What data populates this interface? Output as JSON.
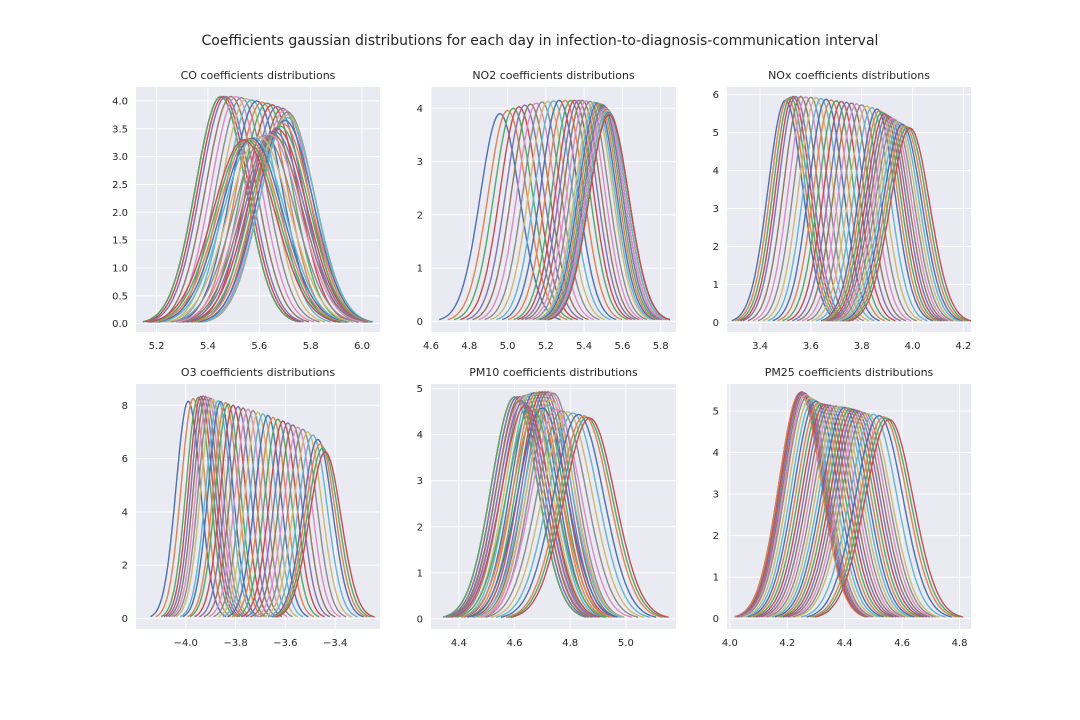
{
  "figure": {
    "title": "Coefficients gaussian distributions for each day in infection-to-diagnosis-communication interval"
  },
  "colors": {
    "plot_background": "#eaeaf2",
    "grid": "#ffffff",
    "palette": [
      "#4c72b0",
      "#dd8452",
      "#55a868",
      "#c44e52",
      "#8172b3",
      "#937860",
      "#da8bc3",
      "#8c8c8c",
      "#ccb974",
      "#64b5cd"
    ]
  },
  "chart_data": [
    {
      "type": "line",
      "title": "CO coefficients distributions",
      "xlabel": "",
      "ylabel": "",
      "xlim": [
        5.12,
        6.07
      ],
      "ylim": [
        -0.15,
        4.25
      ],
      "xticks": [
        5.2,
        5.4,
        5.6,
        5.8,
        6.0
      ],
      "xtick_labels": [
        "5.2",
        "5.4",
        "5.6",
        "5.8",
        "6.0"
      ],
      "yticks": [
        0.0,
        0.5,
        1.0,
        1.5,
        2.0,
        2.5,
        3.0,
        3.5,
        4.0
      ],
      "ytick_labels": [
        "0.0",
        "0.5",
        "1.0",
        "1.5",
        "2.0",
        "2.5",
        "3.0",
        "3.5",
        "4.0"
      ],
      "grid": true,
      "n_series": 34,
      "gaussians": [
        {
          "mean": 5.45,
          "peak": 4.08
        },
        {
          "mean": 5.45,
          "peak": 4.08
        },
        {
          "mean": 5.45,
          "peak": 4.08
        },
        {
          "mean": 5.46,
          "peak": 4.08
        },
        {
          "mean": 5.47,
          "peak": 4.08
        },
        {
          "mean": 5.49,
          "peak": 4.08
        },
        {
          "mean": 5.51,
          "peak": 4.08
        },
        {
          "mean": 5.53,
          "peak": 4.06
        },
        {
          "mean": 5.55,
          "peak": 4.04
        },
        {
          "mean": 5.57,
          "peak": 4.02
        },
        {
          "mean": 5.59,
          "peak": 4.0
        },
        {
          "mean": 5.61,
          "peak": 3.98
        },
        {
          "mean": 5.63,
          "peak": 3.96
        },
        {
          "mean": 5.65,
          "peak": 3.93
        },
        {
          "mean": 5.67,
          "peak": 3.9
        },
        {
          "mean": 5.69,
          "peak": 3.87
        },
        {
          "mean": 5.7,
          "peak": 3.84
        },
        {
          "mean": 5.71,
          "peak": 3.8
        },
        {
          "mean": 5.71,
          "peak": 3.75
        },
        {
          "mean": 5.71,
          "peak": 3.7
        },
        {
          "mean": 5.7,
          "peak": 3.65
        },
        {
          "mean": 5.69,
          "peak": 3.6
        },
        {
          "mean": 5.68,
          "peak": 3.55
        },
        {
          "mean": 5.67,
          "peak": 3.5
        },
        {
          "mean": 5.66,
          "peak": 3.45
        },
        {
          "mean": 5.65,
          "peak": 3.42
        },
        {
          "mean": 5.64,
          "peak": 3.4
        },
        {
          "mean": 5.62,
          "peak": 3.38
        },
        {
          "mean": 5.6,
          "peak": 3.36
        },
        {
          "mean": 5.58,
          "peak": 3.34
        },
        {
          "mean": 5.57,
          "peak": 3.33
        },
        {
          "mean": 5.56,
          "peak": 3.32
        },
        {
          "mean": 5.55,
          "peak": 3.31
        },
        {
          "mean": 5.54,
          "peak": 3.3
        }
      ],
      "support_halfwidth_sd": 3.1
    },
    {
      "type": "line",
      "title": "NO2 coefficients distributions",
      "xlabel": "",
      "ylabel": "",
      "xlim": [
        4.6,
        5.88
      ],
      "ylim": [
        -0.2,
        4.4
      ],
      "xticks": [
        4.6,
        4.8,
        5.0,
        5.2,
        5.4,
        5.6,
        5.8
      ],
      "xtick_labels": [
        "4.6",
        "4.8",
        "5.0",
        "5.2",
        "5.4",
        "5.6",
        "5.8"
      ],
      "yticks": [
        0,
        1,
        2,
        3,
        4
      ],
      "ytick_labels": [
        "0",
        "1",
        "2",
        "3",
        "4"
      ],
      "grid": true,
      "n_series": 34,
      "gaussians": [
        {
          "mean": 4.96,
          "peak": 3.9
        },
        {
          "mean": 5.0,
          "peak": 3.96
        },
        {
          "mean": 5.03,
          "peak": 4.0
        },
        {
          "mean": 5.06,
          "peak": 4.03
        },
        {
          "mean": 5.09,
          "peak": 4.06
        },
        {
          "mean": 5.12,
          "peak": 4.08
        },
        {
          "mean": 5.15,
          "peak": 4.1
        },
        {
          "mean": 5.18,
          "peak": 4.12
        },
        {
          "mean": 5.21,
          "peak": 4.13
        },
        {
          "mean": 5.24,
          "peak": 4.14
        },
        {
          "mean": 5.27,
          "peak": 4.15
        },
        {
          "mean": 5.3,
          "peak": 4.15
        },
        {
          "mean": 5.33,
          "peak": 4.15
        },
        {
          "mean": 5.35,
          "peak": 4.15
        },
        {
          "mean": 5.37,
          "peak": 4.15
        },
        {
          "mean": 5.39,
          "peak": 4.15
        },
        {
          "mean": 5.41,
          "peak": 4.14
        },
        {
          "mean": 5.43,
          "peak": 4.13
        },
        {
          "mean": 5.45,
          "peak": 4.12
        },
        {
          "mean": 5.46,
          "peak": 4.11
        },
        {
          "mean": 5.47,
          "peak": 4.1
        },
        {
          "mean": 5.48,
          "peak": 4.09
        },
        {
          "mean": 5.49,
          "peak": 4.08
        },
        {
          "mean": 5.5,
          "peak": 4.06
        },
        {
          "mean": 5.5,
          "peak": 4.04
        },
        {
          "mean": 5.51,
          "peak": 4.02
        },
        {
          "mean": 5.51,
          "peak": 4.0
        },
        {
          "mean": 5.52,
          "peak": 3.98
        },
        {
          "mean": 5.52,
          "peak": 3.96
        },
        {
          "mean": 5.52,
          "peak": 3.94
        },
        {
          "mean": 5.53,
          "peak": 3.92
        },
        {
          "mean": 5.53,
          "peak": 3.9
        },
        {
          "mean": 5.53,
          "peak": 3.89
        },
        {
          "mean": 5.53,
          "peak": 3.88
        }
      ],
      "support_halfwidth_sd": 3.1
    },
    {
      "type": "line",
      "title": "NOx coefficients distributions",
      "xlabel": "",
      "ylabel": "",
      "xlim": [
        3.27,
        4.23
      ],
      "ylim": [
        -0.25,
        6.2
      ],
      "xticks": [
        3.4,
        3.6,
        3.8,
        4.0,
        4.2
      ],
      "xtick_labels": [
        "3.4",
        "3.6",
        "3.8",
        "4.0",
        "4.2"
      ],
      "yticks": [
        0,
        1,
        2,
        3,
        4,
        5,
        6
      ],
      "ytick_labels": [
        "0",
        "1",
        "2",
        "3",
        "4",
        "5",
        "6"
      ],
      "grid": true,
      "n_series": 34,
      "gaussians": [
        {
          "mean": 3.5,
          "peak": 5.85
        },
        {
          "mean": 3.51,
          "peak": 5.9
        },
        {
          "mean": 3.52,
          "peak": 5.93
        },
        {
          "mean": 3.53,
          "peak": 5.95
        },
        {
          "mean": 3.54,
          "peak": 5.95
        },
        {
          "mean": 3.56,
          "peak": 5.95
        },
        {
          "mean": 3.58,
          "peak": 5.94
        },
        {
          "mean": 3.6,
          "peak": 5.93
        },
        {
          "mean": 3.62,
          "peak": 5.92
        },
        {
          "mean": 3.64,
          "peak": 5.9
        },
        {
          "mean": 3.66,
          "peak": 5.88
        },
        {
          "mean": 3.68,
          "peak": 5.86
        },
        {
          "mean": 3.7,
          "peak": 5.84
        },
        {
          "mean": 3.72,
          "peak": 5.82
        },
        {
          "mean": 3.74,
          "peak": 5.8
        },
        {
          "mean": 3.76,
          "peak": 5.78
        },
        {
          "mean": 3.78,
          "peak": 5.76
        },
        {
          "mean": 3.8,
          "peak": 5.73
        },
        {
          "mean": 3.82,
          "peak": 5.7
        },
        {
          "mean": 3.84,
          "peak": 5.66
        },
        {
          "mean": 3.86,
          "peak": 5.62
        },
        {
          "mean": 3.87,
          "peak": 5.58
        },
        {
          "mean": 3.88,
          "peak": 5.54
        },
        {
          "mean": 3.89,
          "peak": 5.5
        },
        {
          "mean": 3.9,
          "peak": 5.46
        },
        {
          "mean": 3.91,
          "peak": 5.42
        },
        {
          "mean": 3.92,
          "peak": 5.38
        },
        {
          "mean": 3.93,
          "peak": 5.34
        },
        {
          "mean": 3.94,
          "peak": 5.3
        },
        {
          "mean": 3.95,
          "peak": 5.26
        },
        {
          "mean": 3.96,
          "peak": 5.22
        },
        {
          "mean": 3.97,
          "peak": 5.18
        },
        {
          "mean": 3.98,
          "peak": 5.15
        },
        {
          "mean": 3.99,
          "peak": 5.12
        }
      ],
      "support_halfwidth_sd": 3.1
    },
    {
      "type": "line",
      "title": "O3 coefficients distributions",
      "xlabel": "",
      "ylabel": "",
      "xlim": [
        -4.2,
        -3.22
      ],
      "ylim": [
        -0.4,
        8.8
      ],
      "xticks": [
        -4.0,
        -3.8,
        -3.6,
        -3.4
      ],
      "xtick_labels": [
        "−4.0",
        "−3.8",
        "−3.6",
        "−3.4"
      ],
      "yticks": [
        0,
        2,
        4,
        6,
        8
      ],
      "ytick_labels": [
        "0",
        "2",
        "4",
        "6",
        "8"
      ],
      "grid": true,
      "n_series": 34,
      "gaussians": [
        {
          "mean": -3.99,
          "peak": 8.15
        },
        {
          "mean": -3.97,
          "peak": 8.25
        },
        {
          "mean": -3.95,
          "peak": 8.3
        },
        {
          "mean": -3.94,
          "peak": 8.33
        },
        {
          "mean": -3.93,
          "peak": 8.35
        },
        {
          "mean": -3.92,
          "peak": 8.33
        },
        {
          "mean": -3.91,
          "peak": 8.3
        },
        {
          "mean": -3.9,
          "peak": 8.26
        },
        {
          "mean": -3.89,
          "peak": 8.22
        },
        {
          "mean": -3.87,
          "peak": 8.18
        },
        {
          "mean": -3.86,
          "peak": 8.14
        },
        {
          "mean": -3.84,
          "peak": 8.1
        },
        {
          "mean": -3.83,
          "peak": 8.05
        },
        {
          "mean": -3.81,
          "peak": 8.0
        },
        {
          "mean": -3.79,
          "peak": 7.95
        },
        {
          "mean": -3.77,
          "peak": 7.9
        },
        {
          "mean": -3.75,
          "peak": 7.85
        },
        {
          "mean": -3.73,
          "peak": 7.8
        },
        {
          "mean": -3.71,
          "peak": 7.74
        },
        {
          "mean": -3.69,
          "peak": 7.68
        },
        {
          "mean": -3.67,
          "peak": 7.62
        },
        {
          "mean": -3.65,
          "peak": 7.55
        },
        {
          "mean": -3.63,
          "peak": 7.48
        },
        {
          "mean": -3.61,
          "peak": 7.41
        },
        {
          "mean": -3.59,
          "peak": 7.34
        },
        {
          "mean": -3.57,
          "peak": 7.26
        },
        {
          "mean": -3.55,
          "peak": 7.18
        },
        {
          "mean": -3.53,
          "peak": 7.1
        },
        {
          "mean": -3.51,
          "peak": 7.0
        },
        {
          "mean": -3.49,
          "peak": 6.88
        },
        {
          "mean": -3.47,
          "peak": 6.72
        },
        {
          "mean": -3.46,
          "peak": 6.55
        },
        {
          "mean": -3.45,
          "peak": 6.4
        },
        {
          "mean": -3.44,
          "peak": 6.25
        }
      ],
      "support_halfwidth_sd": 3.1
    },
    {
      "type": "line",
      "title": "PM10 coefficients distributions",
      "xlabel": "",
      "ylabel": "",
      "xlim": [
        4.3,
        5.18
      ],
      "ylim": [
        -0.22,
        5.1
      ],
      "xticks": [
        4.4,
        4.6,
        4.8,
        5.0
      ],
      "xtick_labels": [
        "4.4",
        "4.6",
        "4.8",
        "5.0"
      ],
      "yticks": [
        0,
        1,
        2,
        3,
        4,
        5
      ],
      "ytick_labels": [
        "0",
        "1",
        "2",
        "3",
        "4",
        "5"
      ],
      "grid": true,
      "n_series": 34,
      "gaussians": [
        {
          "mean": 4.6,
          "peak": 4.82
        },
        {
          "mean": 4.6,
          "peak": 4.82
        },
        {
          "mean": 4.6,
          "peak": 4.82
        },
        {
          "mean": 4.61,
          "peak": 4.82
        },
        {
          "mean": 4.61,
          "peak": 4.82
        },
        {
          "mean": 4.62,
          "peak": 4.83
        },
        {
          "mean": 4.63,
          "peak": 4.84
        },
        {
          "mean": 4.64,
          "peak": 4.86
        },
        {
          "mean": 4.65,
          "peak": 4.88
        },
        {
          "mean": 4.66,
          "peak": 4.9
        },
        {
          "mean": 4.67,
          "peak": 4.91
        },
        {
          "mean": 4.68,
          "peak": 4.92
        },
        {
          "mean": 4.69,
          "peak": 4.93
        },
        {
          "mean": 4.7,
          "peak": 4.93
        },
        {
          "mean": 4.71,
          "peak": 4.93
        },
        {
          "mean": 4.72,
          "peak": 4.93
        },
        {
          "mean": 4.73,
          "peak": 4.92
        },
        {
          "mean": 4.74,
          "peak": 4.9
        },
        {
          "mean": 4.73,
          "peak": 4.75
        },
        {
          "mean": 4.72,
          "peak": 4.65
        },
        {
          "mean": 4.7,
          "peak": 4.58
        },
        {
          "mean": 4.68,
          "peak": 4.55
        },
        {
          "mean": 4.66,
          "peak": 4.6
        },
        {
          "mean": 4.64,
          "peak": 4.65
        },
        {
          "mean": 4.63,
          "peak": 4.7
        },
        {
          "mean": 4.62,
          "peak": 4.75
        },
        {
          "mean": 4.75,
          "peak": 4.55
        },
        {
          "mean": 4.77,
          "peak": 4.52
        },
        {
          "mean": 4.79,
          "peak": 4.5
        },
        {
          "mean": 4.81,
          "peak": 4.47
        },
        {
          "mean": 4.83,
          "peak": 4.44
        },
        {
          "mean": 4.85,
          "peak": 4.41
        },
        {
          "mean": 4.86,
          "peak": 4.38
        },
        {
          "mean": 4.87,
          "peak": 4.36
        }
      ],
      "support_halfwidth_sd": 3.1
    },
    {
      "type": "line",
      "title": "PM25 coefficients distributions",
      "xlabel": "",
      "ylabel": "",
      "xlim": [
        3.99,
        4.84
      ],
      "ylim": [
        -0.25,
        5.65
      ],
      "xticks": [
        4.0,
        4.2,
        4.4,
        4.6,
        4.8
      ],
      "xtick_labels": [
        "4.0",
        "4.2",
        "4.4",
        "4.6",
        "4.8"
      ],
      "yticks": [
        0,
        1,
        2,
        3,
        4,
        5
      ],
      "ytick_labels": [
        "0",
        "1",
        "2",
        "3",
        "4",
        "5"
      ],
      "grid": true,
      "n_series": 34,
      "gaussians": [
        {
          "mean": 4.245,
          "peak": 5.42
        },
        {
          "mean": 4.245,
          "peak": 5.44
        },
        {
          "mean": 4.25,
          "peak": 5.46
        },
        {
          "mean": 4.25,
          "peak": 5.46
        },
        {
          "mean": 4.255,
          "peak": 5.45
        },
        {
          "mean": 4.26,
          "peak": 5.43
        },
        {
          "mean": 4.265,
          "peak": 5.4
        },
        {
          "mean": 4.27,
          "peak": 5.36
        },
        {
          "mean": 4.28,
          "peak": 5.32
        },
        {
          "mean": 4.29,
          "peak": 5.28
        },
        {
          "mean": 4.3,
          "peak": 5.24
        },
        {
          "mean": 4.31,
          "peak": 5.2
        },
        {
          "mean": 4.32,
          "peak": 5.18
        },
        {
          "mean": 4.33,
          "peak": 5.16
        },
        {
          "mean": 4.34,
          "peak": 5.15
        },
        {
          "mean": 4.35,
          "peak": 5.14
        },
        {
          "mean": 4.36,
          "peak": 5.13
        },
        {
          "mean": 4.37,
          "peak": 5.12
        },
        {
          "mean": 4.38,
          "peak": 5.11
        },
        {
          "mean": 4.39,
          "peak": 5.1
        },
        {
          "mean": 4.4,
          "peak": 5.09
        },
        {
          "mean": 4.41,
          "peak": 5.08
        },
        {
          "mean": 4.42,
          "peak": 5.06
        },
        {
          "mean": 4.43,
          "peak": 5.04
        },
        {
          "mean": 4.44,
          "peak": 5.02
        },
        {
          "mean": 4.45,
          "peak": 5.0
        },
        {
          "mean": 4.46,
          "peak": 4.98
        },
        {
          "mean": 4.47,
          "peak": 4.96
        },
        {
          "mean": 4.48,
          "peak": 4.94
        },
        {
          "mean": 4.5,
          "peak": 4.92
        },
        {
          "mean": 4.52,
          "peak": 4.89
        },
        {
          "mean": 4.535,
          "peak": 4.86
        },
        {
          "mean": 4.545,
          "peak": 4.83
        },
        {
          "mean": 4.555,
          "peak": 4.8
        }
      ],
      "support_halfwidth_sd": 3.1
    }
  ]
}
